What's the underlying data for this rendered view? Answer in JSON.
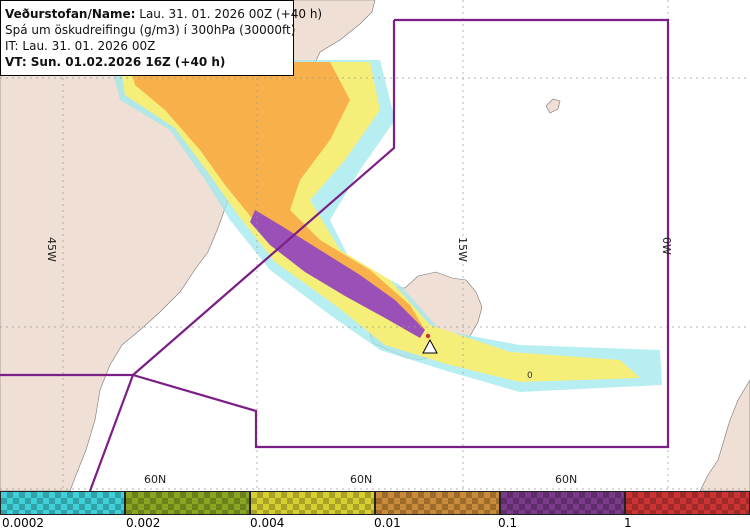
{
  "info": {
    "line1_label": "Veðurstofan/Name:",
    "line1_value": "Lau. 31. 01. 2026 00Z (+40 h)",
    "line2": "Spá um öskudreifingu (g/m3) í 300hPa (30000ft)",
    "line3": "IT: Lau. 31. 01. 2026 00Z",
    "line4": "VT: Sun. 01.02.2026 16Z (+40 h)"
  },
  "grid": {
    "longitudes": [
      "45W",
      "15W",
      "0W"
    ],
    "latitudes": [
      "60N",
      "60N",
      "60N"
    ]
  },
  "legend": {
    "colors": [
      "#3fd0d8",
      "#8aa521",
      "#d7cf32",
      "#c98a3a",
      "#7b3a8a",
      "#cc3333"
    ],
    "ticks": [
      "0.0002",
      "0.002",
      "0.004",
      "0.01",
      "0.1",
      "1"
    ]
  },
  "map": {
    "plume_label": "0",
    "colors": {
      "sea": "#ffffff",
      "land": "#efdfd5",
      "boundary": "#7b1f86",
      "cloud_orange": "#f7b04a",
      "cloud_yellow": "#f5ef7a",
      "cloud_cyan": "#9fe8ec",
      "cloud_purple": "#9a50b6"
    },
    "icons": [
      "volcano-triangle-icon"
    ]
  }
}
